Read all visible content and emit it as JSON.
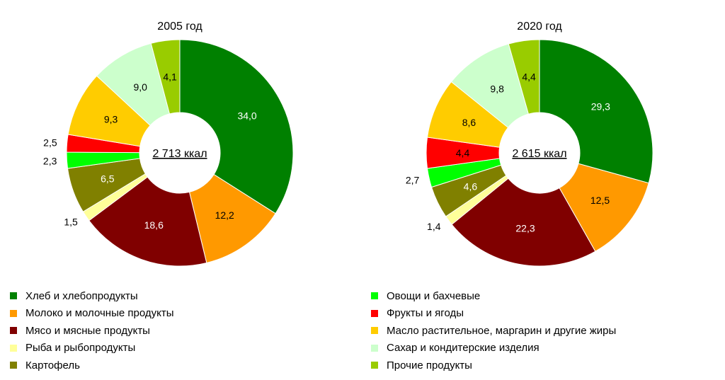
{
  "chart_data": {
    "type": "pie",
    "charts": [
      {
        "title": "2005 год",
        "total_label": "2 713 ккал",
        "values": [
          34.0,
          12.2,
          18.6,
          1.5,
          6.5,
          2.3,
          2.5,
          9.3,
          9.0,
          4.1
        ],
        "value_labels": [
          "34,0",
          "12,2",
          "18,6",
          "1,5",
          "6,5",
          "2,3",
          "2,5",
          "9,3",
          "9,0",
          "4,1"
        ]
      },
      {
        "title": "2020 год",
        "total_label": "2 615 ккал",
        "values": [
          29.3,
          12.5,
          22.3,
          1.4,
          4.6,
          2.7,
          4.4,
          8.6,
          9.8,
          4.4
        ],
        "value_labels": [
          "29,3",
          "12,5",
          "22,3",
          "1,4",
          "4,6",
          "2,7",
          "4,4",
          "8,6",
          "9,8",
          "4,4"
        ]
      }
    ],
    "categories": [
      "Хлеб и хлебопродукты",
      "Молоко и молочные продукты",
      "Мясо и мясные продукты",
      "Рыба и рыбопродукты",
      "Картофель",
      "Овощи и бахчевые",
      "Фрукты и ягоды",
      "Масло растительное, маргарин и другие жиры",
      "Сахар и кондитерские изделия",
      "Прочие продукты"
    ],
    "colors": [
      "#008000",
      "#FF9900",
      "#800000",
      "#FFFF99",
      "#808000",
      "#00FF00",
      "#FF0000",
      "#FFCC00",
      "#CCFFCC",
      "#99CC00"
    ],
    "label_colors": [
      "#ffffff",
      "#000000",
      "#ffffff",
      "#000000",
      "#ffffff",
      "#000000",
      "#000000",
      "#000000",
      "#000000",
      "#000000"
    ],
    "legend_placement": "bottom"
  }
}
